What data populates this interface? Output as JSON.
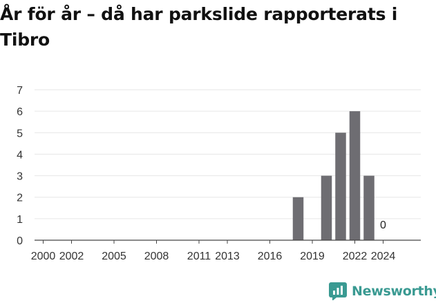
{
  "title": "År för år – då har parkslide rapporterats i Tibro",
  "brand": {
    "name": "Newsworthy",
    "icon": "newsworthy-logo-icon",
    "color": "#3a9a92"
  },
  "colors": {
    "bar": "#6e6d72",
    "grid": "#e6e6e6",
    "axis": "#444444"
  },
  "chart_data": {
    "type": "bar",
    "title": "År för år – då har parkslide rapporterats i Tibro",
    "xlabel": "",
    "ylabel": "",
    "ylim": [
      0,
      7
    ],
    "yticks": [
      0,
      1,
      2,
      3,
      4,
      5,
      6,
      7
    ],
    "grid": true,
    "legend": "none",
    "xticks": [
      "2000",
      "2002",
      "2005",
      "2008",
      "2011",
      "2013",
      "2016",
      "2019",
      "2022",
      "2024"
    ],
    "categories": [
      "2000",
      "2001",
      "2002",
      "2003",
      "2004",
      "2005",
      "2006",
      "2007",
      "2008",
      "2009",
      "2010",
      "2011",
      "2012",
      "2013",
      "2014",
      "2015",
      "2016",
      "2017",
      "2018",
      "2019",
      "2020",
      "2021",
      "2022",
      "2023",
      "2024"
    ],
    "values": [
      null,
      null,
      null,
      null,
      null,
      null,
      null,
      null,
      null,
      null,
      null,
      null,
      null,
      null,
      null,
      null,
      null,
      null,
      2,
      null,
      3,
      5,
      6,
      3,
      0
    ],
    "data_labels": [
      {
        "category": "2024",
        "text": "0"
      }
    ]
  }
}
